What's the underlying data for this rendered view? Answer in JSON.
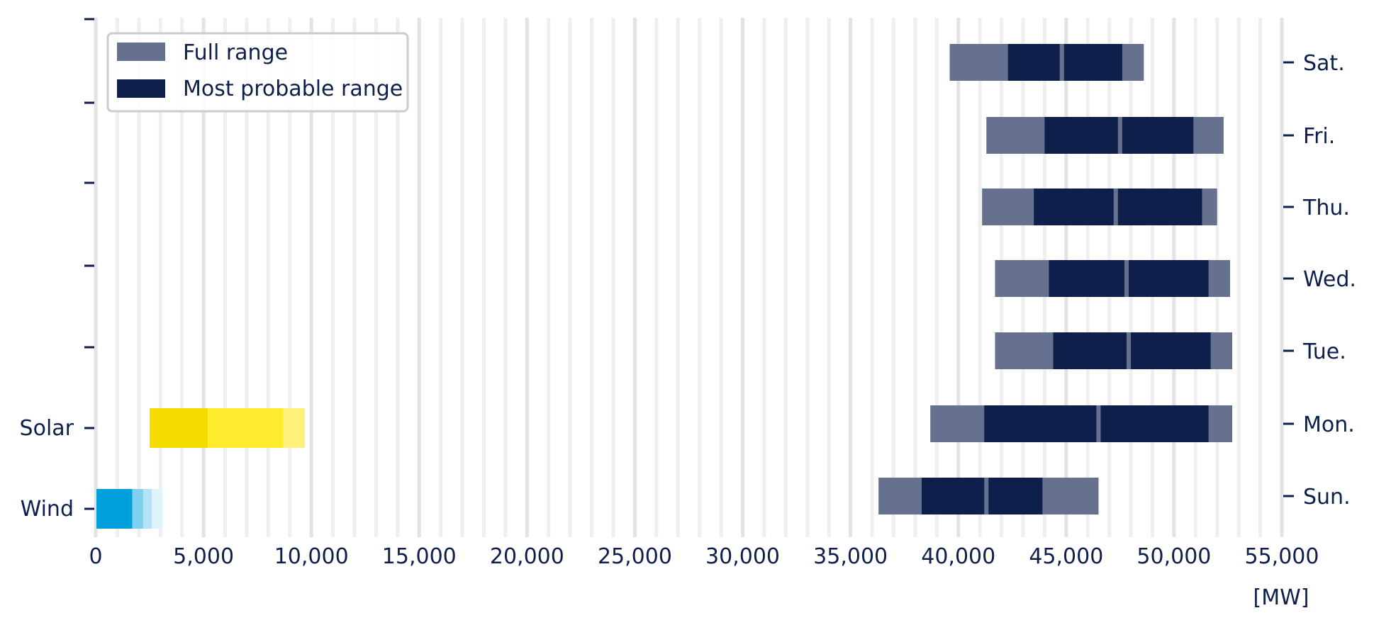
{
  "chart_data": {
    "type": "range-bar",
    "xlabel": "[MW]",
    "xlim": [
      0,
      55000
    ],
    "x_ticks": [
      0,
      5000,
      10000,
      15000,
      20000,
      25000,
      30000,
      35000,
      40000,
      45000,
      50000,
      55000
    ],
    "x_tick_labels": [
      "0",
      "5,000",
      "10,000",
      "15,000",
      "20,000",
      "25,000",
      "30,000",
      "35,000",
      "40,000",
      "45,000",
      "50,000",
      "55,000"
    ],
    "grid": "vertical",
    "legend_position": "top-left",
    "legend": [
      {
        "label": "Full range",
        "color": "#66708f"
      },
      {
        "label": "Most probable range",
        "color": "#0f1f4b"
      }
    ],
    "days": [
      {
        "label": "Sun.",
        "full": [
          36300,
          46500
        ],
        "probable": [
          [
            38300,
            41200
          ],
          [
            41400,
            43900
          ]
        ]
      },
      {
        "label": "Mon.",
        "full": [
          38700,
          52700
        ],
        "probable": [
          [
            41200,
            46400
          ],
          [
            46600,
            51600
          ]
        ]
      },
      {
        "label": "Tue.",
        "full": [
          41700,
          52700
        ],
        "probable": [
          [
            44400,
            47800
          ],
          [
            48000,
            51700
          ]
        ]
      },
      {
        "label": "Wed.",
        "full": [
          41700,
          52600
        ],
        "probable": [
          [
            44200,
            47700
          ],
          [
            47900,
            51600
          ]
        ]
      },
      {
        "label": "Thu.",
        "full": [
          41100,
          52000
        ],
        "probable": [
          [
            43500,
            47200
          ],
          [
            47400,
            51300
          ]
        ]
      },
      {
        "label": "Fri.",
        "full": [
          41300,
          52300
        ],
        "probable": [
          [
            44000,
            47400
          ],
          [
            47600,
            50900
          ]
        ]
      },
      {
        "label": "Sat.",
        "full": [
          39600,
          48600
        ],
        "probable": [
          [
            42300,
            44700
          ],
          [
            44900,
            47600
          ]
        ]
      }
    ],
    "renewables": [
      {
        "label": "Solar",
        "segments": [
          {
            "range": [
              2500,
              5200
            ],
            "color": "#f5dc00"
          },
          {
            "range": [
              5200,
              8700
            ],
            "color": "#ffeb2e"
          },
          {
            "range": [
              8700,
              9700
            ],
            "color": "#fff07a"
          }
        ]
      },
      {
        "label": "Wind",
        "segments": [
          {
            "range": [
              0,
              1700
            ],
            "color": "#00a0dc"
          },
          {
            "range": [
              1700,
              2200
            ],
            "color": "#7fd0ef"
          },
          {
            "range": [
              2200,
              2600
            ],
            "color": "#b3e3f6"
          },
          {
            "range": [
              2600,
              3100
            ],
            "color": "#dff3fb"
          }
        ]
      }
    ]
  }
}
